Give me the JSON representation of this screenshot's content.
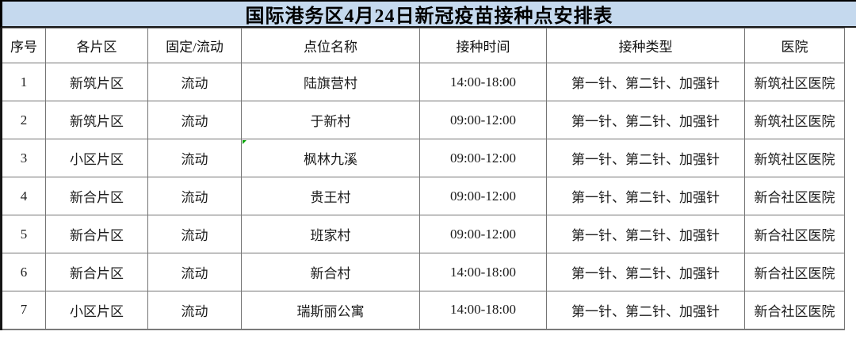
{
  "title": "国际港务区4月24日新冠疫苗接种点安排表",
  "colors": {
    "title_background": "#c5d9ee",
    "grid_line": "#757575",
    "outer_border": "#000000",
    "error_marker_green": "#00a000",
    "text": "#1a1a1a"
  },
  "columns": [
    "序号",
    "各片区",
    "固定/流动",
    "点位名称",
    "接种时间",
    "接种类型",
    "医院"
  ],
  "rows": [
    {
      "no": "1",
      "district": "新筑片区",
      "mode": "流动",
      "site": "陆旗营村",
      "time": "14:00-18:00",
      "type": "第一针、第二针、加强针",
      "hospital": "新筑社区医院",
      "marker": false
    },
    {
      "no": "2",
      "district": "新筑片区",
      "mode": "流动",
      "site": "于新村",
      "time": "09:00-12:00",
      "type": "第一针、第二针、加强针",
      "hospital": "新筑社区医院",
      "marker": false
    },
    {
      "no": "3",
      "district": "小区片区",
      "mode": "流动",
      "site": "枫林九溪",
      "time": "09:00-12:00",
      "type": "第一针、第二针、加强针",
      "hospital": "新筑社区医院",
      "marker": true
    },
    {
      "no": "4",
      "district": "新合片区",
      "mode": "流动",
      "site": "贵王村",
      "time": "09:00-12:00",
      "type": "第一针、第二针、加强针",
      "hospital": "新合社区医院",
      "marker": false
    },
    {
      "no": "5",
      "district": "新合片区",
      "mode": "流动",
      "site": "班家村",
      "time": "09:00-12:00",
      "type": "第一针、第二针、加强针",
      "hospital": "新合社区医院",
      "marker": false
    },
    {
      "no": "6",
      "district": "新合片区",
      "mode": "流动",
      "site": "新合村",
      "time": "14:00-18:00",
      "type": "第一针、第二针、加强针",
      "hospital": "新合社区医院",
      "marker": false
    },
    {
      "no": "7",
      "district": "小区片区",
      "mode": "流动",
      "site": "瑞斯丽公寓",
      "time": "14:00-18:00",
      "type": "第一针、第二针、加强针",
      "hospital": "新合社区医院",
      "marker": false
    }
  ]
}
